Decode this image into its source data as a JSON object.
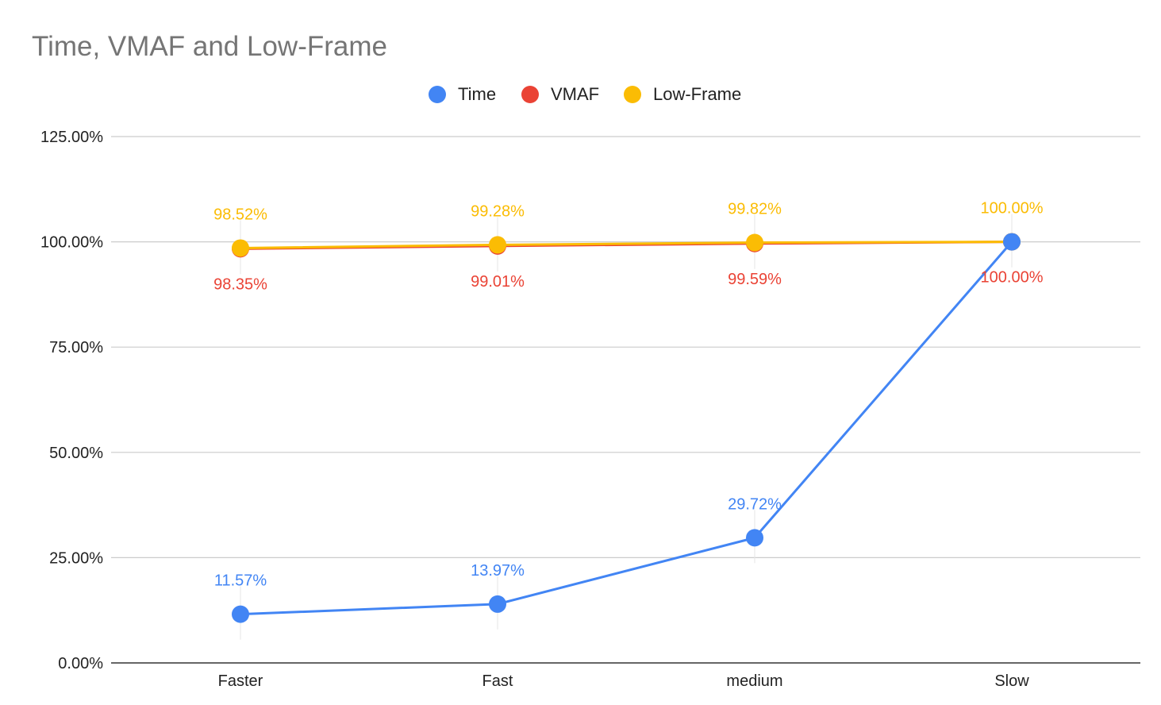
{
  "chart_data": {
    "type": "line",
    "title": "Time, VMAF and Low-Frame",
    "xlabel": "",
    "ylabel": "",
    "categories": [
      "Faster",
      "Fast",
      "medium",
      "Slow"
    ],
    "ylim": [
      0,
      125
    ],
    "yticks": [
      0,
      25,
      50,
      75,
      100,
      125
    ],
    "ytick_labels": [
      "0.00%",
      "25.00%",
      "50.00%",
      "75.00%",
      "100.00%",
      "125.00%"
    ],
    "grid": true,
    "legend_position": "top-center",
    "series": [
      {
        "name": "Time",
        "color": "#4285f4",
        "values": [
          11.57,
          13.97,
          29.72,
          100.0
        ],
        "labels": [
          "11.57%",
          "13.97%",
          "29.72%",
          ""
        ]
      },
      {
        "name": "VMAF",
        "color": "#ea4335",
        "values": [
          98.35,
          99.01,
          99.59,
          100.0
        ],
        "labels": [
          "98.35%",
          "99.01%",
          "99.59%",
          "100.00%"
        ]
      },
      {
        "name": "Low-Frame",
        "color": "#fbbc04",
        "values": [
          98.52,
          99.28,
          99.82,
          100.0
        ],
        "labels": [
          "98.52%",
          "99.28%",
          "99.82%",
          "100.00%"
        ]
      }
    ]
  }
}
